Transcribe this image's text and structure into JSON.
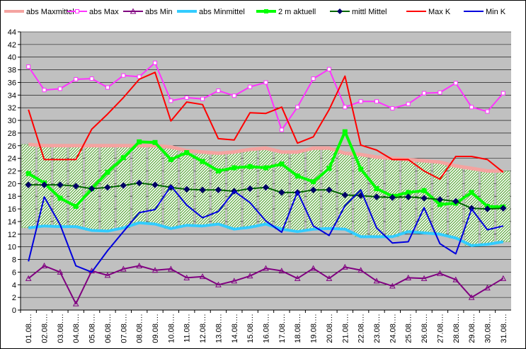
{
  "chart_data": {
    "type": "line",
    "categories": [
      "01.08.",
      "02.08.",
      "03.08.",
      "04.08.",
      "05.08.",
      "06.08.",
      "07.08.",
      "08.08.",
      "09.08.",
      "10.08.",
      "11.08.",
      "12.08.",
      "13.08.",
      "14.08.",
      "15.08.",
      "16.08.",
      "17.08.",
      "18.08.",
      "19.08.",
      "20.08.",
      "21.08.",
      "22.08.",
      "23.08.",
      "24.08.",
      "25.08.",
      "26.08.",
      "27.08.",
      "28.08.",
      "29.08.",
      "30.08.",
      "31.08."
    ],
    "tick_labels": [
      "01.08.…",
      "02.08.…",
      "03.08.…",
      "04.08.…",
      "05.08.…",
      "06.08.…",
      "07.08.…",
      "08.08.…",
      "09.08.…",
      "10.08.…",
      "11.08.…",
      "12.08.…",
      "13.08.…",
      "14.08.…",
      "15.08.…",
      "16.08.…",
      "17.08.…",
      "18.08.…",
      "19.08.…",
      "20.08.…",
      "21.08.…",
      "22.08.…",
      "23.08.…",
      "24.08.…",
      "25.08.…",
      "26.08.…",
      "27.08.…",
      "28.08.…",
      "29.08.…",
      "30.08.…",
      "31.08.…"
    ],
    "ylim": [
      0,
      44
    ],
    "ystep": 2,
    "grid": true,
    "legend": "top",
    "band": {
      "upper": "abs Maxmittel",
      "lower": "abs Minmittel",
      "fill": "#7ec85a"
    },
    "series": [
      {
        "name": "abs Maxmittel",
        "color": "#f4a3a0",
        "width": 5,
        "marker": "none",
        "values": [
          26.2,
          26.0,
          26.0,
          26.0,
          26.0,
          26.0,
          26.0,
          26.0,
          26.0,
          25.8,
          25.2,
          25.0,
          24.8,
          25.0,
          25.4,
          25.6,
          25.0,
          25.0,
          25.6,
          25.6,
          24.8,
          24.6,
          24.2,
          24.0,
          23.8,
          23.6,
          23.4,
          22.8,
          22.4,
          22.0,
          22.0
        ]
      },
      {
        "name": "abs Max",
        "color": "#ff33ff",
        "width": 2,
        "marker": "square-open",
        "values": [
          38.5,
          34.8,
          35.0,
          36.5,
          36.6,
          35.2,
          37.1,
          36.9,
          39.1,
          33.1,
          33.6,
          33.4,
          34.7,
          33.9,
          35.3,
          36.0,
          28.5,
          32.1,
          36.6,
          38.1,
          32.1,
          33.0,
          33.0,
          31.9,
          32.6,
          34.3,
          34.4,
          35.9,
          32.1,
          31.4,
          34.3
        ]
      },
      {
        "name": "abs Min",
        "color": "#800080",
        "width": 2,
        "marker": "triangle",
        "values": [
          5.0,
          7.0,
          6.0,
          1.0,
          6.2,
          5.5,
          6.5,
          7.0,
          6.3,
          6.5,
          5.1,
          5.3,
          4.0,
          4.6,
          5.4,
          6.6,
          6.2,
          5.0,
          6.6,
          5.0,
          6.8,
          6.3,
          4.6,
          3.8,
          5.1,
          5.0,
          5.8,
          4.8,
          2.0,
          3.5,
          5.0
        ]
      },
      {
        "name": "abs Minmittel",
        "color": "#33ccff",
        "width": 4,
        "marker": "none",
        "values": [
          13.0,
          13.3,
          13.2,
          13.2,
          12.6,
          12.5,
          13.0,
          13.8,
          13.6,
          12.9,
          13.4,
          13.3,
          13.6,
          12.8,
          13.1,
          13.6,
          12.8,
          12.4,
          12.8,
          12.9,
          12.8,
          11.6,
          11.6,
          11.6,
          12.4,
          12.2,
          12.0,
          11.4,
          10.2,
          10.4,
          10.8
        ]
      },
      {
        "name": "2 m aktuell",
        "color": "#00ff00",
        "width": 4,
        "marker": "square",
        "values": [
          21.6,
          20.1,
          17.7,
          16.4,
          19.2,
          21.8,
          24.1,
          26.6,
          26.5,
          23.8,
          24.9,
          23.5,
          22.0,
          22.5,
          22.7,
          22.5,
          23.1,
          21.2,
          20.3,
          22.4,
          28.2,
          22.3,
          19.2,
          18.0,
          18.6,
          18.9,
          16.7,
          16.9,
          18.6,
          16.4,
          16.3
        ]
      },
      {
        "name": "mittl Mittel",
        "color": "#006600",
        "width": 2,
        "marker": "diamond",
        "values": [
          19.8,
          19.8,
          19.8,
          19.6,
          19.2,
          19.4,
          19.7,
          20.1,
          19.8,
          19.4,
          19.1,
          19.0,
          19.0,
          18.8,
          19.2,
          19.4,
          18.6,
          18.6,
          19.0,
          19.0,
          18.2,
          18.1,
          17.9,
          17.8,
          17.9,
          17.7,
          17.5,
          17.2,
          16.1,
          16.0,
          16.1
        ]
      },
      {
        "name": "Max K",
        "color": "#ff0000",
        "width": 2,
        "marker": "none",
        "values": [
          31.7,
          23.8,
          23.8,
          23.8,
          28.6,
          31.0,
          33.6,
          36.5,
          37.6,
          29.9,
          32.9,
          32.5,
          27.1,
          26.9,
          31.2,
          31.1,
          32.1,
          26.4,
          27.4,
          31.7,
          37.0,
          26.1,
          25.3,
          23.8,
          23.8,
          22.0,
          20.7,
          24.3,
          24.3,
          23.8,
          21.8
        ]
      },
      {
        "name": "Min K",
        "color": "#0000dd",
        "width": 2,
        "marker": "none",
        "values": [
          7.7,
          17.9,
          13.5,
          7.0,
          6.0,
          9.4,
          12.4,
          15.4,
          15.9,
          19.6,
          16.6,
          14.6,
          15.6,
          18.8,
          17.0,
          14.1,
          12.3,
          18.7,
          13.3,
          11.8,
          16.5,
          19.0,
          13.0,
          10.6,
          10.8,
          16.2,
          10.5,
          8.9,
          16.0,
          12.7,
          13.3
        ]
      }
    ]
  }
}
